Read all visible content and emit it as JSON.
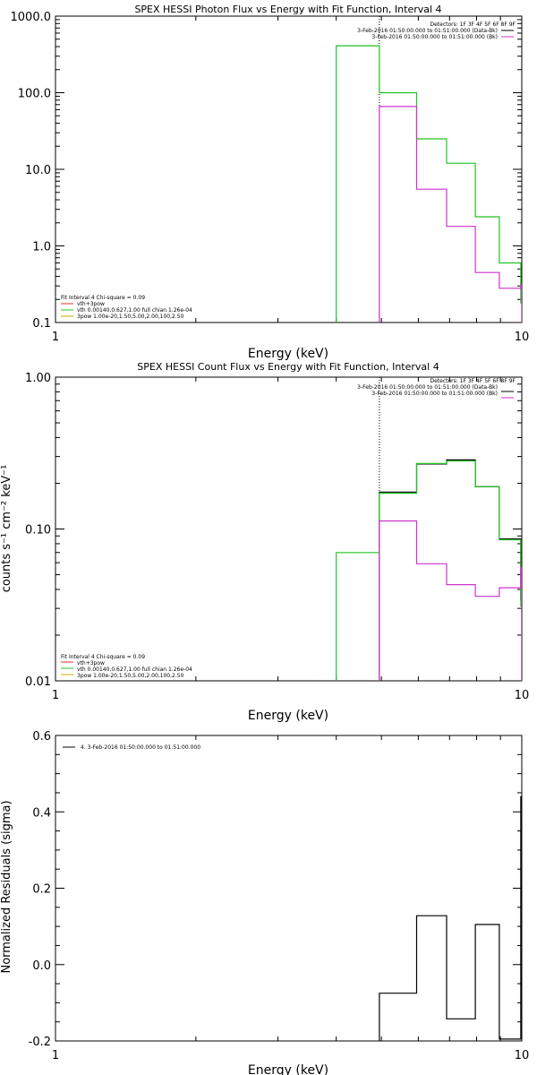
{
  "chart_data": [
    {
      "type": "line",
      "title": "SPEX HESSI Photon Flux vs Energy with Fit Function, Interval 4",
      "xlabel": "Energy (keV)",
      "ylabel": "",
      "xscale": "log",
      "yscale": "log",
      "xlim": [
        1,
        10
      ],
      "ylim": [
        0.1,
        1000
      ],
      "x_ticks": [
        "1",
        "10"
      ],
      "y_ticks": [
        "0.1",
        "1.0",
        "10.0",
        "100.0",
        "1000.0"
      ],
      "vline_x": 4.95,
      "legend_topright": {
        "header": "Detectors: 1F 3F 4F 5F 6F 8F 9F",
        "entries": [
          {
            "label": "3-Feb-2016 01:50:00.000 to 01:51:00.000 (Data-Bk)",
            "color": "#000000"
          },
          {
            "label": "3-Feb-2016 01:50:00.000 to 01:51:00.000 (Bk)",
            "color": "#cc33cc"
          }
        ]
      },
      "legend_bottomleft": {
        "header": "Fit Interval 4   Chi-square = 0.09",
        "entries": [
          {
            "label": "vth+3pow",
            "color": "#e03030"
          },
          {
            "label": "vth 0.00140,0.627,1.00  full chian 1.26e-04",
            "color": "#22c422"
          },
          {
            "label": "3pow 1.00e-20,1.50,5.00,2.00,100,2.50",
            "color": "#d4a800"
          }
        ]
      },
      "series": [
        {
          "color": "#22c422",
          "edges": [
            4.0,
            4.95,
            5.95,
            6.9,
            7.95,
            8.95,
            9.95,
            10.0
          ],
          "values": [
            410,
            100,
            25,
            12,
            2.4,
            0.6,
            0.18
          ]
        },
        {
          "color": "#cc33cc",
          "edges": [
            4.95,
            5.95,
            6.9,
            7.95,
            8.95,
            9.95,
            10.0
          ],
          "values": [
            66,
            5.5,
            1.8,
            0.45,
            0.28,
            0.31
          ]
        }
      ]
    },
    {
      "type": "line",
      "title": "SPEX HESSI Count Flux vs Energy with Fit Function, Interval 4",
      "xlabel": "Energy (keV)",
      "ylabel": "counts s⁻¹ cm⁻² keV⁻¹",
      "xscale": "log",
      "yscale": "log",
      "xlim": [
        1,
        10
      ],
      "ylim": [
        0.01,
        1.0
      ],
      "x_ticks": [
        "1",
        "10"
      ],
      "y_ticks": [
        "0.01",
        "0.10",
        "1.00"
      ],
      "vline_x": 4.95,
      "legend_topright": {
        "header": "Detectors: 1F 3F 4F 5F 6F 8F 9F",
        "entries": [
          {
            "label": "3-Feb-2016 01:50:00.000 to 01:51:00.000 (Data-Bk)",
            "color": "#000000"
          },
          {
            "label": "3-Feb-2016 01:50:00.000 to 01:51:00.000 (Bk)",
            "color": "#cc33cc"
          }
        ]
      },
      "legend_bottomleft": {
        "header": "Fit Interval 4   Chi-square = 0.09",
        "entries": [
          {
            "label": "vth+3pow",
            "color": "#e03030"
          },
          {
            "label": "vth 0.00140,0.627,1.00  full chian 1.26e-04",
            "color": "#22c422"
          },
          {
            "label": "3pow 1.00e-20,1.50,5.00,2.00,100,2.50",
            "color": "#d4a800"
          }
        ]
      },
      "series": [
        {
          "color": "#000000",
          "edges": [
            4.95,
            5.95,
            6.9,
            7.95,
            8.95,
            9.95,
            10.0
          ],
          "values": [
            0.175,
            0.268,
            0.285,
            0.19,
            0.086,
            0.034
          ]
        },
        {
          "color": "#22c422",
          "edges": [
            4.0,
            4.95,
            5.95,
            6.9,
            7.95,
            8.95,
            9.95,
            10.0
          ],
          "values": [
            0.07,
            0.172,
            0.27,
            0.28,
            0.19,
            0.085,
            0.031
          ]
        },
        {
          "color": "#cc33cc",
          "edges": [
            4.95,
            5.95,
            6.9,
            7.95,
            8.95,
            9.95,
            10.0
          ],
          "values": [
            0.113,
            0.059,
            0.043,
            0.036,
            0.041,
            0.056
          ]
        }
      ]
    },
    {
      "type": "line",
      "title": "",
      "xlabel": "Energy (keV)",
      "ylabel": "Normalized Residuals (sigma)",
      "xscale": "log",
      "yscale": "linear",
      "xlim": [
        1,
        10
      ],
      "ylim": [
        -0.2,
        0.6
      ],
      "x_ticks": [
        "1",
        "10"
      ],
      "y_ticks": [
        "-0.2",
        "0.0",
        "0.2",
        "0.4",
        "0.6"
      ],
      "legend_topleft": {
        "entries": [
          {
            "label": "4.  3-Feb-2016 01:50:00.000 to 01:51:00.000",
            "color": "#000000"
          }
        ]
      },
      "series": [
        {
          "color": "#000000",
          "edges": [
            4.95,
            5.95,
            6.9,
            7.95,
            8.95,
            9.95,
            10.0
          ],
          "values": [
            -0.075,
            0.128,
            -0.142,
            0.105,
            -0.195,
            0.44
          ]
        }
      ]
    }
  ]
}
